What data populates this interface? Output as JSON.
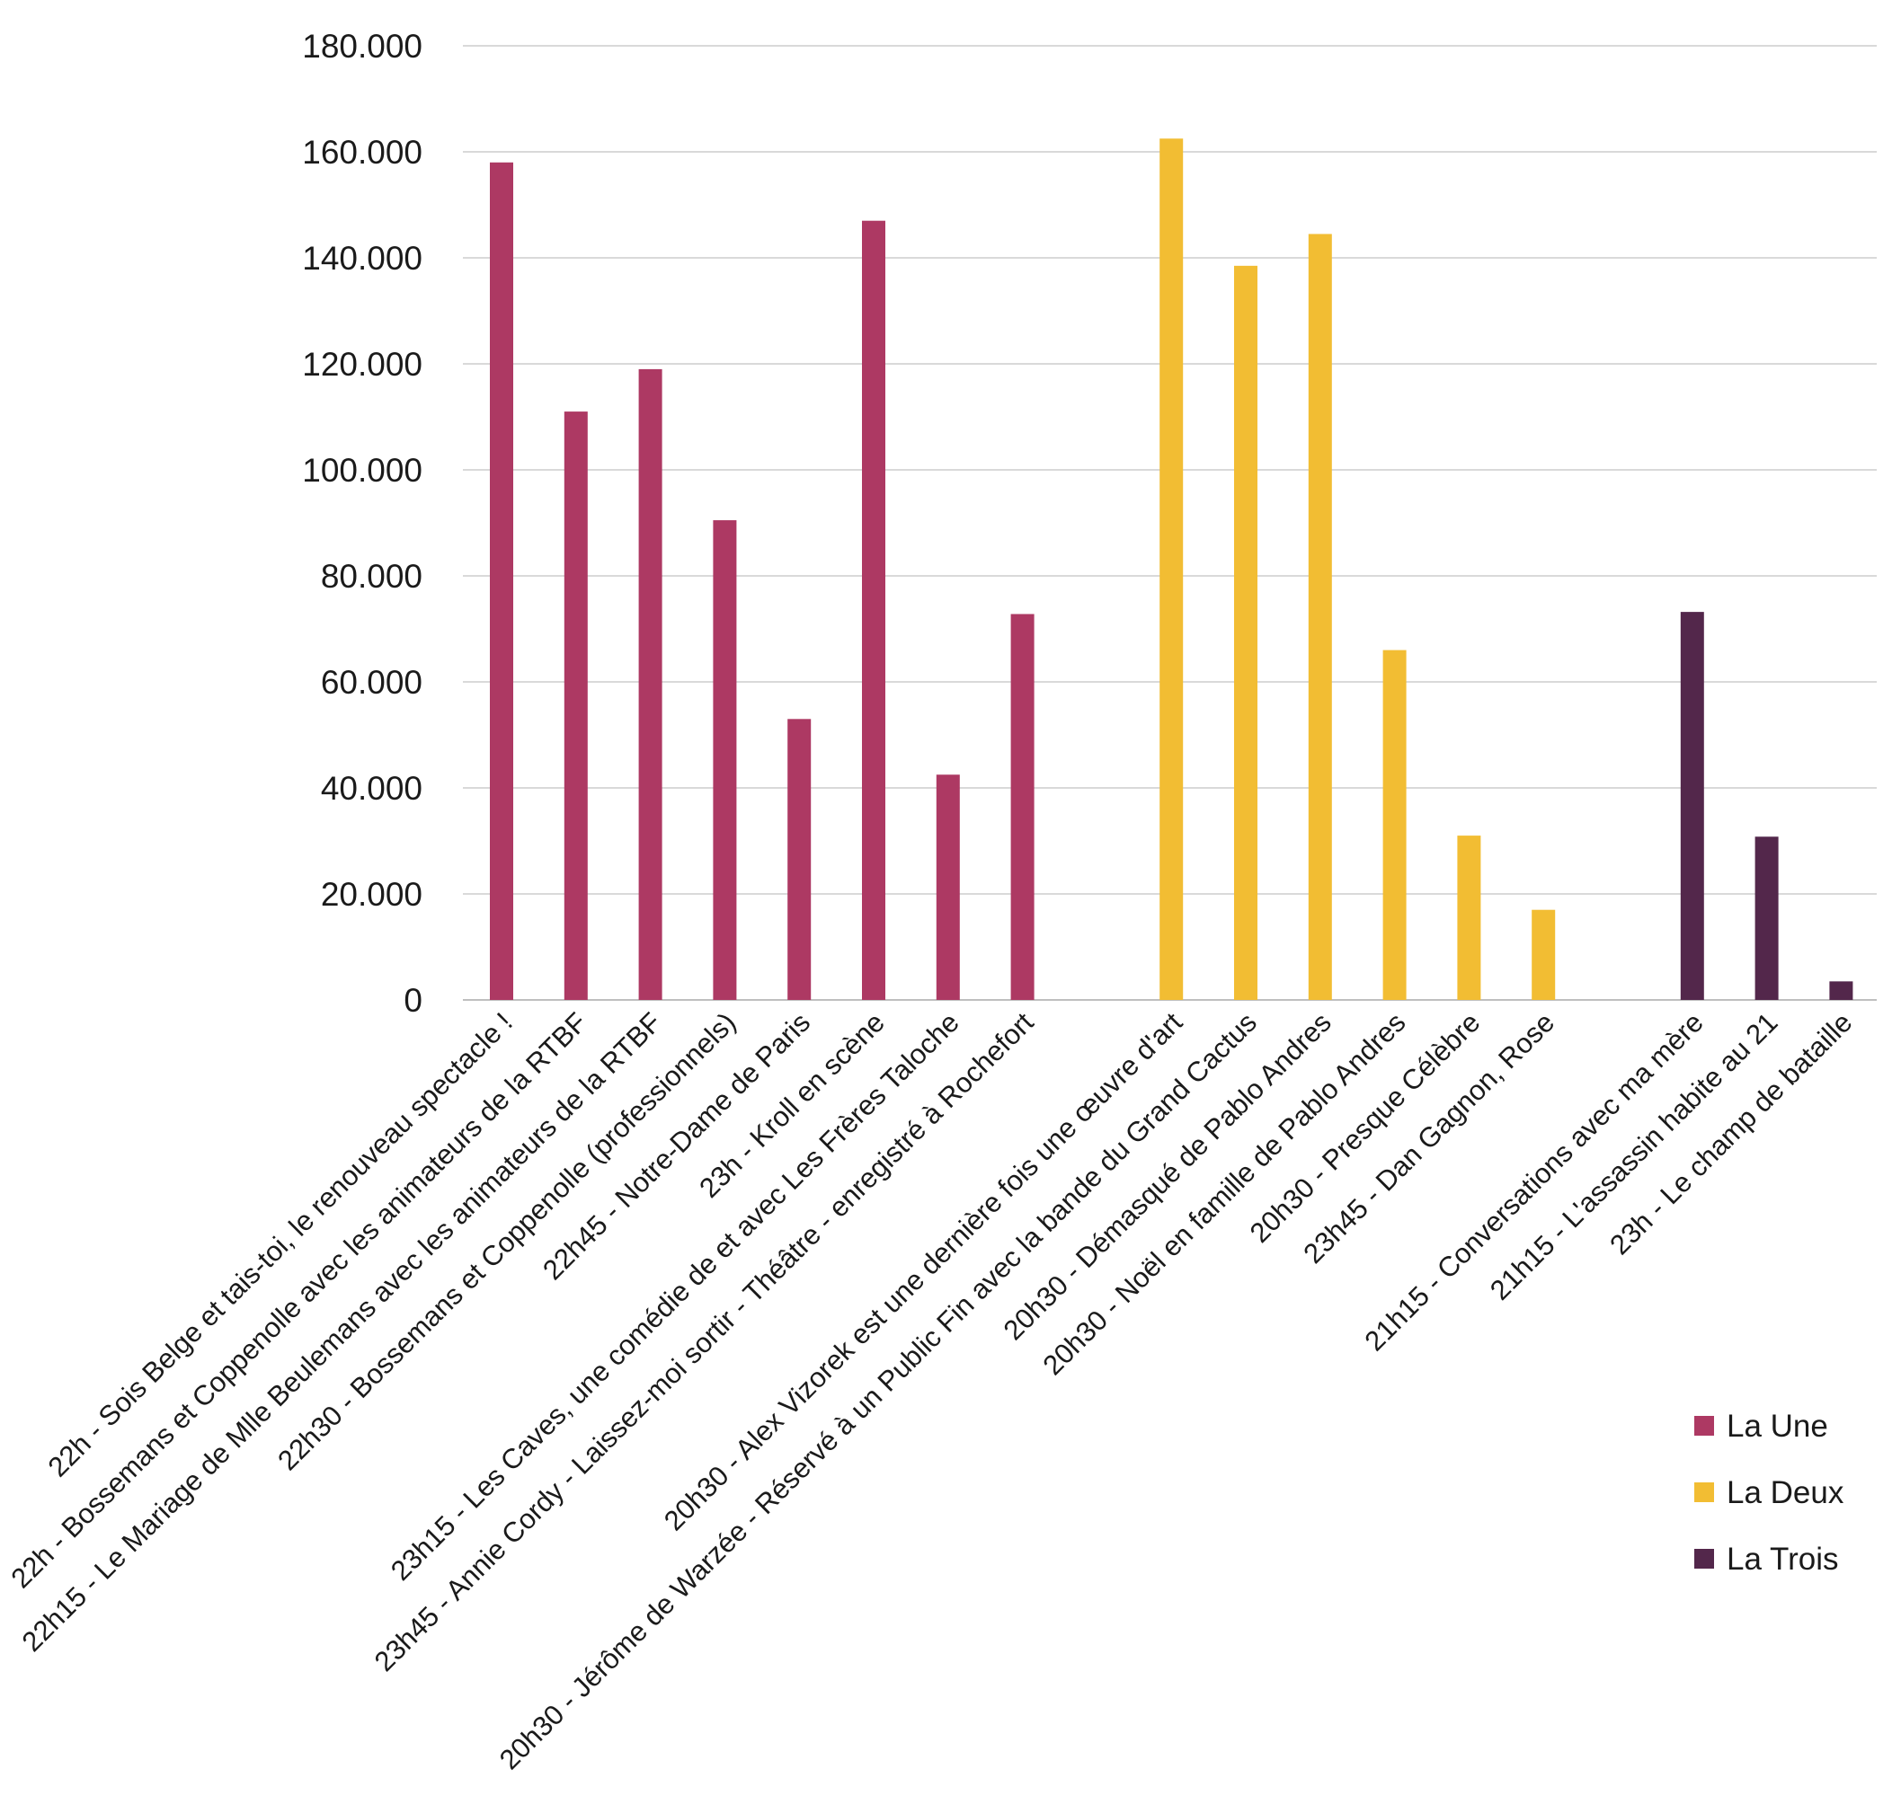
{
  "chart_data": {
    "type": "bar",
    "title": "",
    "xlabel": "",
    "ylabel": "",
    "ylim": [
      0,
      180000
    ],
    "yticks": [
      0,
      20000,
      40000,
      60000,
      80000,
      100000,
      120000,
      140000,
      160000,
      180000
    ],
    "ytick_labels": [
      "0",
      "20.000",
      "40.000",
      "60.000",
      "80.000",
      "100.000",
      "120.000",
      "140.000",
      "160.000",
      "180.000"
    ],
    "grid": true,
    "legend_position": "bottom-right",
    "series": [
      {
        "name": "La Une",
        "color": "#AD3963",
        "categories": [
          "22h - Sois Belge et tais-toi, le renouveau spectacle !",
          "22h - Bossemans et Coppenolle avec les animateurs de la RTBF",
          "22h15 - Le Mariage de Mlle Beulemans avec les animateurs de la RTBF",
          "22h30 - Bossemans et Coppenolle (professionnels)",
          "22h45 - Notre-Dame de Paris",
          "23h - Kroll en scène",
          "23h15 - Les Caves, une comédie de et avec Les Frères Taloche",
          "23h45 - Annie Cordy - Laissez-moi sortir - Théâtre - enregistré à Rochefort"
        ],
        "values": [
          158000,
          111000,
          119000,
          90500,
          53000,
          147000,
          42500,
          72800
        ]
      },
      {
        "name": "La Deux",
        "color": "#F2BD33",
        "categories": [
          "20h30 - Alex Vizorek est une dernière fois une œuvre d'art",
          "20h30 - Jérôme de Warzée - Réservé à un Public Fin avec la bande du Grand Cactus",
          "20h30 - Démasqué de Pablo Andres",
          "20h30 - Noël en famille de Pablo Andres",
          "20h30 - Presque Célèbre",
          "23h45 - Dan Gagnon, Rose"
        ],
        "values": [
          162500,
          138500,
          144500,
          66000,
          31000,
          17000
        ]
      },
      {
        "name": "La Trois",
        "color": "#53274B",
        "categories": [
          "21h15 - Conversations avec ma mère",
          "21h15 - L'assassin habite au 21",
          "23h - Le champ de bataille"
        ],
        "values": [
          73200,
          30800,
          3500
        ]
      }
    ]
  }
}
